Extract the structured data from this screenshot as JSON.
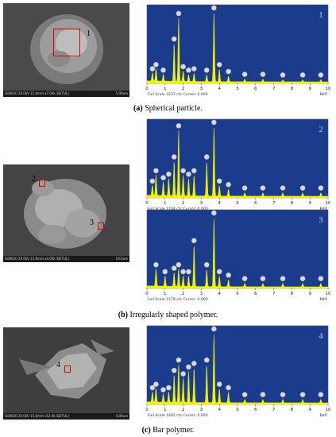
{
  "sem": [
    {
      "id": "sem-a",
      "footer": "SU8020 20.0kV 15.6mm x7.00k SE(TUL)",
      "scale": "5.00um",
      "markers": [
        "1"
      ]
    },
    {
      "id": "sem-b",
      "footer": "SU8020 20.0kV 15.6mm x4.00k SE(TUL)",
      "scale": "10.0um",
      "markers": [
        "2",
        "3"
      ]
    },
    {
      "id": "sem-c",
      "footer": "SU8020 20.0kV 15.6mm x12.0k SE(TUL)",
      "scale": "4.00um",
      "markers": [
        "4"
      ]
    }
  ],
  "captions": [
    {
      "label": "(a)",
      "text": " Spherical particle."
    },
    {
      "label": "(b)",
      "text": " Irregularly shaped polymer."
    },
    {
      "label": "(c)",
      "text": " Bar polymer."
    }
  ],
  "chart_data": [
    {
      "type": "line",
      "title": "1",
      "xlabel": "keV",
      "xlim": [
        0,
        10
      ],
      "footer": "Full Scale 3237 cts Cursor: 0.000",
      "x_ticks": [
        0,
        1,
        2,
        3,
        4,
        5,
        6,
        7,
        8,
        9,
        10
      ],
      "peaks": [
        [
          0.3,
          0.12
        ],
        [
          0.5,
          0.18
        ],
        [
          0.9,
          0.1
        ],
        [
          1.5,
          0.55
        ],
        [
          1.75,
          0.92
        ],
        [
          2.0,
          0.15
        ],
        [
          2.3,
          0.1
        ],
        [
          2.6,
          0.12
        ],
        [
          3.3,
          0.1
        ],
        [
          3.7,
          1.0
        ],
        [
          4.0,
          0.18
        ],
        [
          4.5,
          0.08
        ],
        [
          5.4,
          0.04
        ],
        [
          6.4,
          0.04
        ],
        [
          7.5,
          0.03
        ],
        [
          8.6,
          0.03
        ],
        [
          9.6,
          0.03
        ]
      ],
      "dots": [
        0.3,
        0.5,
        0.9,
        1.5,
        1.75,
        2.0,
        2.3,
        2.6,
        3.3,
        3.7,
        4.0,
        4.5,
        5.4,
        6.4,
        7.5,
        8.6,
        9.6
      ]
    },
    {
      "type": "line",
      "title": "2",
      "xlabel": "keV",
      "xlim": [
        0,
        10
      ],
      "footer": "Full Scale 1704 cts Cursor: 0.000",
      "x_ticks": [
        0,
        1,
        2,
        3,
        4,
        5,
        6,
        7,
        8,
        9,
        10
      ],
      "peaks": [
        [
          0.3,
          0.15
        ],
        [
          0.5,
          0.3
        ],
        [
          0.9,
          0.2
        ],
        [
          1.2,
          0.25
        ],
        [
          1.5,
          0.5
        ],
        [
          1.75,
          0.95
        ],
        [
          2.0,
          0.3
        ],
        [
          2.3,
          0.25
        ],
        [
          2.6,
          0.3
        ],
        [
          3.3,
          0.5
        ],
        [
          3.7,
          1.0
        ],
        [
          4.0,
          0.15
        ],
        [
          4.5,
          0.1
        ],
        [
          5.4,
          0.05
        ],
        [
          6.4,
          0.05
        ],
        [
          7.5,
          0.05
        ],
        [
          8.6,
          0.05
        ],
        [
          9.6,
          0.05
        ]
      ],
      "dots": [
        0.3,
        0.5,
        0.9,
        1.2,
        1.5,
        1.75,
        2.0,
        2.3,
        2.6,
        3.3,
        3.7,
        4.0,
        4.5,
        5.4,
        6.4,
        7.5,
        8.6,
        9.6
      ]
    },
    {
      "type": "line",
      "title": "3",
      "xlabel": "keV",
      "xlim": [
        0,
        10
      ],
      "footer": "Full Scale 2178 cts Cursor: 0.000",
      "x_ticks": [
        0,
        1,
        2,
        3,
        4,
        5,
        6,
        7,
        8,
        9,
        10
      ],
      "peaks": [
        [
          0.5,
          0.25
        ],
        [
          1.0,
          0.15
        ],
        [
          1.5,
          0.2
        ],
        [
          1.75,
          0.25
        ],
        [
          2.0,
          0.15
        ],
        [
          2.3,
          0.15
        ],
        [
          2.6,
          0.6
        ],
        [
          3.3,
          0.25
        ],
        [
          3.7,
          1.0
        ],
        [
          4.0,
          0.15
        ],
        [
          4.5,
          0.1
        ],
        [
          5.4,
          0.05
        ],
        [
          6.4,
          0.05
        ],
        [
          7.5,
          0.05
        ],
        [
          8.6,
          0.05
        ],
        [
          9.6,
          0.05
        ]
      ],
      "dots": [
        0.5,
        1.0,
        1.5,
        1.75,
        2.0,
        2.3,
        2.6,
        3.3,
        3.7,
        4.0,
        4.5,
        5.4,
        6.4,
        7.5,
        8.6,
        9.6
      ]
    },
    {
      "type": "line",
      "title": "4",
      "xlabel": "keV",
      "xlim": [
        0,
        10
      ],
      "footer": "Full Scale 1462 cts Cursor: 0.000",
      "x_ticks": [
        0,
        1,
        2,
        3,
        4,
        5,
        6,
        7,
        8,
        9,
        10
      ],
      "peaks": [
        [
          0.3,
          0.15
        ],
        [
          0.5,
          0.2
        ],
        [
          0.9,
          0.12
        ],
        [
          1.2,
          0.15
        ],
        [
          1.5,
          0.4
        ],
        [
          1.75,
          0.55
        ],
        [
          2.0,
          0.35
        ],
        [
          2.3,
          0.45
        ],
        [
          2.6,
          0.5
        ],
        [
          3.3,
          0.55
        ],
        [
          3.7,
          1.0
        ],
        [
          4.0,
          0.2
        ],
        [
          4.5,
          0.15
        ],
        [
          5.4,
          0.05
        ],
        [
          6.4,
          0.05
        ],
        [
          7.5,
          0.05
        ],
        [
          8.6,
          0.05
        ],
        [
          9.6,
          0.05
        ]
      ],
      "dots": [
        0.3,
        0.5,
        0.9,
        1.2,
        1.5,
        1.75,
        2.0,
        2.3,
        2.6,
        3.3,
        3.7,
        4.0,
        4.5,
        5.4,
        6.4,
        7.5,
        8.6,
        9.6
      ]
    }
  ]
}
